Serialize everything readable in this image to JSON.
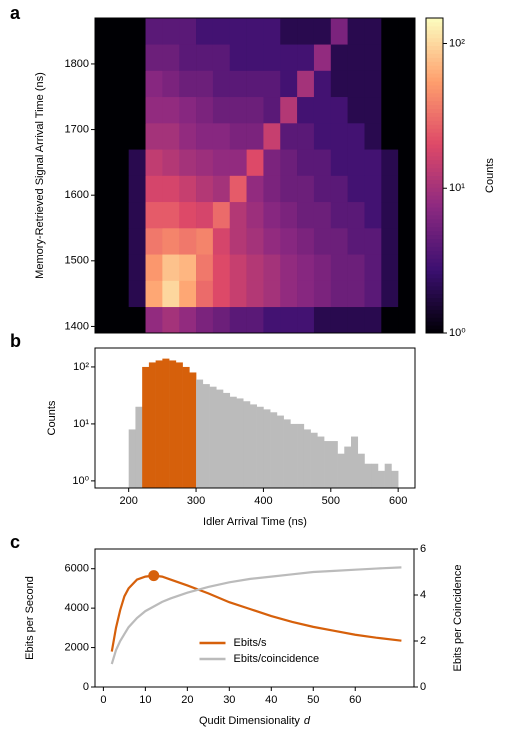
{
  "chart_data": [
    {
      "type": "heatmap",
      "panel_label": "a",
      "ylabel": "Memory-Retrieved Signal Arrival Time (ns)",
      "xbins": [
        150,
        175,
        200,
        225,
        250,
        275,
        300,
        325,
        350,
        375,
        400,
        425,
        450,
        475,
        500,
        525,
        550,
        575,
        600,
        625
      ],
      "ybins": [
        1390,
        1430,
        1470,
        1510,
        1550,
        1590,
        1630,
        1670,
        1710,
        1750,
        1790,
        1830,
        1870
      ],
      "values": [
        [
          0,
          0,
          1,
          8,
          10,
          8,
          6,
          5,
          4,
          4,
          3,
          3,
          3,
          2,
          2,
          2,
          2,
          1,
          0
        ],
        [
          0,
          0,
          2,
          60,
          100,
          60,
          30,
          20,
          15,
          12,
          10,
          8,
          7,
          6,
          5,
          5,
          4,
          2,
          0
        ],
        [
          0,
          0,
          2,
          50,
          80,
          70,
          35,
          20,
          15,
          12,
          10,
          8,
          7,
          6,
          5,
          5,
          4,
          2,
          0
        ],
        [
          0,
          0,
          2,
          35,
          40,
          35,
          40,
          18,
          12,
          10,
          8,
          7,
          6,
          5,
          5,
          4,
          4,
          2,
          0
        ],
        [
          0,
          0,
          2,
          25,
          25,
          20,
          18,
          30,
          12,
          9,
          7,
          6,
          5,
          5,
          4,
          4,
          3,
          2,
          0
        ],
        [
          0,
          0,
          2,
          18,
          18,
          15,
          12,
          10,
          25,
          8,
          6,
          5,
          5,
          4,
          4,
          3,
          3,
          2,
          0
        ],
        [
          0,
          0,
          2,
          14,
          12,
          10,
          9,
          8,
          8,
          20,
          6,
          5,
          4,
          4,
          3,
          3,
          3,
          2,
          0
        ],
        [
          0,
          0,
          1,
          10,
          10,
          8,
          7,
          7,
          6,
          6,
          15,
          4,
          4,
          3,
          3,
          3,
          2,
          1,
          0
        ],
        [
          0,
          0,
          1,
          8,
          8,
          7,
          6,
          5,
          5,
          5,
          4,
          12,
          3,
          3,
          3,
          2,
          2,
          1,
          0
        ],
        [
          0,
          0,
          1,
          7,
          6,
          5,
          5,
          4,
          4,
          4,
          4,
          3,
          10,
          3,
          2,
          2,
          2,
          1,
          0
        ],
        [
          0,
          0,
          1,
          5,
          5,
          4,
          4,
          4,
          3,
          3,
          3,
          3,
          3,
          8,
          2,
          2,
          2,
          1,
          0
        ],
        [
          0,
          0,
          1,
          4,
          4,
          4,
          3,
          3,
          3,
          3,
          3,
          2,
          2,
          2,
          6,
          2,
          2,
          1,
          0
        ]
      ],
      "xlim": [
        150,
        625
      ],
      "ylim": [
        1390,
        1870
      ],
      "yticks": [
        1400,
        1500,
        1600,
        1700,
        1800
      ],
      "zscale": "log",
      "zlim": [
        1,
        150
      ],
      "zlabel": "Counts",
      "zticks": [
        {
          "value": 1,
          "label": "10⁰"
        },
        {
          "value": 10,
          "label": "10¹"
        },
        {
          "value": 100,
          "label": "10²"
        }
      ],
      "colormap": [
        "#000004",
        "#3b0f70",
        "#8c2981",
        "#de4968",
        "#fe9f6d",
        "#fcfdbf"
      ]
    },
    {
      "type": "histogram",
      "panel_label": "b",
      "xlabel": "Idler Arrival Time (ns)",
      "ylabel": "Counts",
      "bins": [
        200,
        210,
        220,
        230,
        240,
        250,
        260,
        270,
        280,
        290,
        300,
        310,
        320,
        330,
        340,
        350,
        360,
        370,
        380,
        390,
        400,
        410,
        420,
        430,
        440,
        450,
        460,
        470,
        480,
        490,
        500,
        510,
        520,
        530,
        540,
        550,
        560,
        570,
        580,
        590,
        600
      ],
      "values": [
        8,
        20,
        100,
        120,
        130,
        140,
        130,
        120,
        100,
        80,
        60,
        50,
        45,
        40,
        35,
        30,
        28,
        25,
        22,
        20,
        18,
        16,
        14,
        12,
        10,
        10,
        8,
        7,
        6,
        5,
        5,
        3,
        4,
        6,
        3,
        2,
        2,
        1.5,
        2,
        1.5
      ],
      "colors": [
        "#bbbbbb",
        "#bbbbbb",
        "#d6600b",
        "#d6600b",
        "#d6600b",
        "#d6600b",
        "#d6600b",
        "#d6600b",
        "#d6600b",
        "#d6600b",
        "#bbbbbb",
        "#bbbbbb",
        "#bbbbbb",
        "#bbbbbb",
        "#bbbbbb",
        "#bbbbbb",
        "#bbbbbb",
        "#bbbbbb",
        "#bbbbbb",
        "#bbbbbb",
        "#bbbbbb",
        "#bbbbbb",
        "#bbbbbb",
        "#bbbbbb",
        "#bbbbbb",
        "#bbbbbb",
        "#bbbbbb",
        "#bbbbbb",
        "#bbbbbb",
        "#bbbbbb",
        "#bbbbbb",
        "#bbbbbb",
        "#bbbbbb",
        "#bbbbbb",
        "#bbbbbb",
        "#bbbbbb",
        "#bbbbbb",
        "#bbbbbb",
        "#bbbbbb",
        "#bbbbbb"
      ],
      "xlim": [
        150,
        625
      ],
      "ylim": [
        0.75,
        215
      ],
      "yscale": "log",
      "xticks": [
        200,
        300,
        400,
        500,
        600
      ],
      "yticks": [
        {
          "value": 1,
          "label": "10⁰"
        },
        {
          "value": 10,
          "label": "10¹"
        },
        {
          "value": 100,
          "label": "10²"
        }
      ]
    },
    {
      "type": "line",
      "panel_label": "c",
      "xlabel": "Qudit Dimensionality",
      "xlabel_var": "d",
      "ylabel": "Ebits per Second",
      "y2label": "Ebits per Coincidence",
      "x": [
        2,
        3,
        4,
        5,
        6,
        8,
        10,
        12,
        14,
        16,
        20,
        25,
        30,
        35,
        40,
        45,
        50,
        55,
        60,
        65,
        71
      ],
      "series": [
        {
          "name": "Ebits/s",
          "color": "#d6600b",
          "values": [
            1800,
            3000,
            3900,
            4600,
            5000,
            5450,
            5600,
            5650,
            5600,
            5450,
            5150,
            4750,
            4300,
            3950,
            3600,
            3300,
            3050,
            2850,
            2650,
            2500,
            2350
          ]
        },
        {
          "name": "Ebits/coincidence",
          "color": "#bbbbbb",
          "axis": "y2",
          "values": [
            1.0,
            1.6,
            2.0,
            2.3,
            2.6,
            3.0,
            3.3,
            3.5,
            3.7,
            3.85,
            4.1,
            4.35,
            4.55,
            4.7,
            4.8,
            4.9,
            5.0,
            5.05,
            5.1,
            5.15,
            5.2
          ]
        }
      ],
      "highlight": {
        "x": 12,
        "y": 5650
      },
      "xlim": [
        -2,
        74
      ],
      "ylim": [
        0,
        7000
      ],
      "y2lim": [
        0,
        6
      ],
      "xticks": [
        0,
        10,
        20,
        30,
        40,
        50,
        60
      ],
      "yticks": [
        0,
        2000,
        4000,
        6000
      ],
      "y2ticks": [
        0,
        2,
        4,
        6
      ],
      "legend": "lower center"
    }
  ]
}
